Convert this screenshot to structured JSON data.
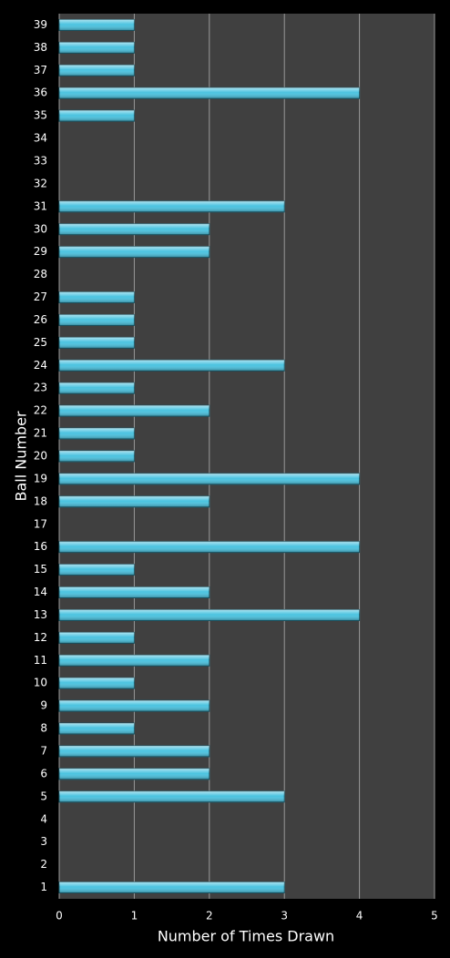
{
  "chart_data": {
    "type": "barh",
    "xlabel": "Number of Times Drawn",
    "ylabel": "Ball Number",
    "categories": [
      "1",
      "2",
      "3",
      "4",
      "5",
      "6",
      "7",
      "8",
      "9",
      "10",
      "11",
      "12",
      "13",
      "14",
      "15",
      "16",
      "17",
      "18",
      "19",
      "20",
      "21",
      "22",
      "23",
      "24",
      "25",
      "26",
      "27",
      "28",
      "29",
      "30",
      "31",
      "32",
      "33",
      "34",
      "35",
      "36",
      "37",
      "38",
      "39"
    ],
    "values": [
      3,
      0,
      0,
      0,
      3,
      2,
      2,
      1,
      2,
      1,
      2,
      1,
      4,
      2,
      1,
      4,
      0,
      2,
      4,
      1,
      1,
      2,
      1,
      3,
      1,
      1,
      1,
      0,
      2,
      2,
      3,
      0,
      0,
      0,
      1,
      4,
      1,
      1,
      1
    ],
    "color": "#4bc3e0",
    "xlim": [
      0,
      5
    ],
    "xticks": [
      0,
      1,
      2,
      3,
      4,
      5
    ],
    "grid": true
  }
}
